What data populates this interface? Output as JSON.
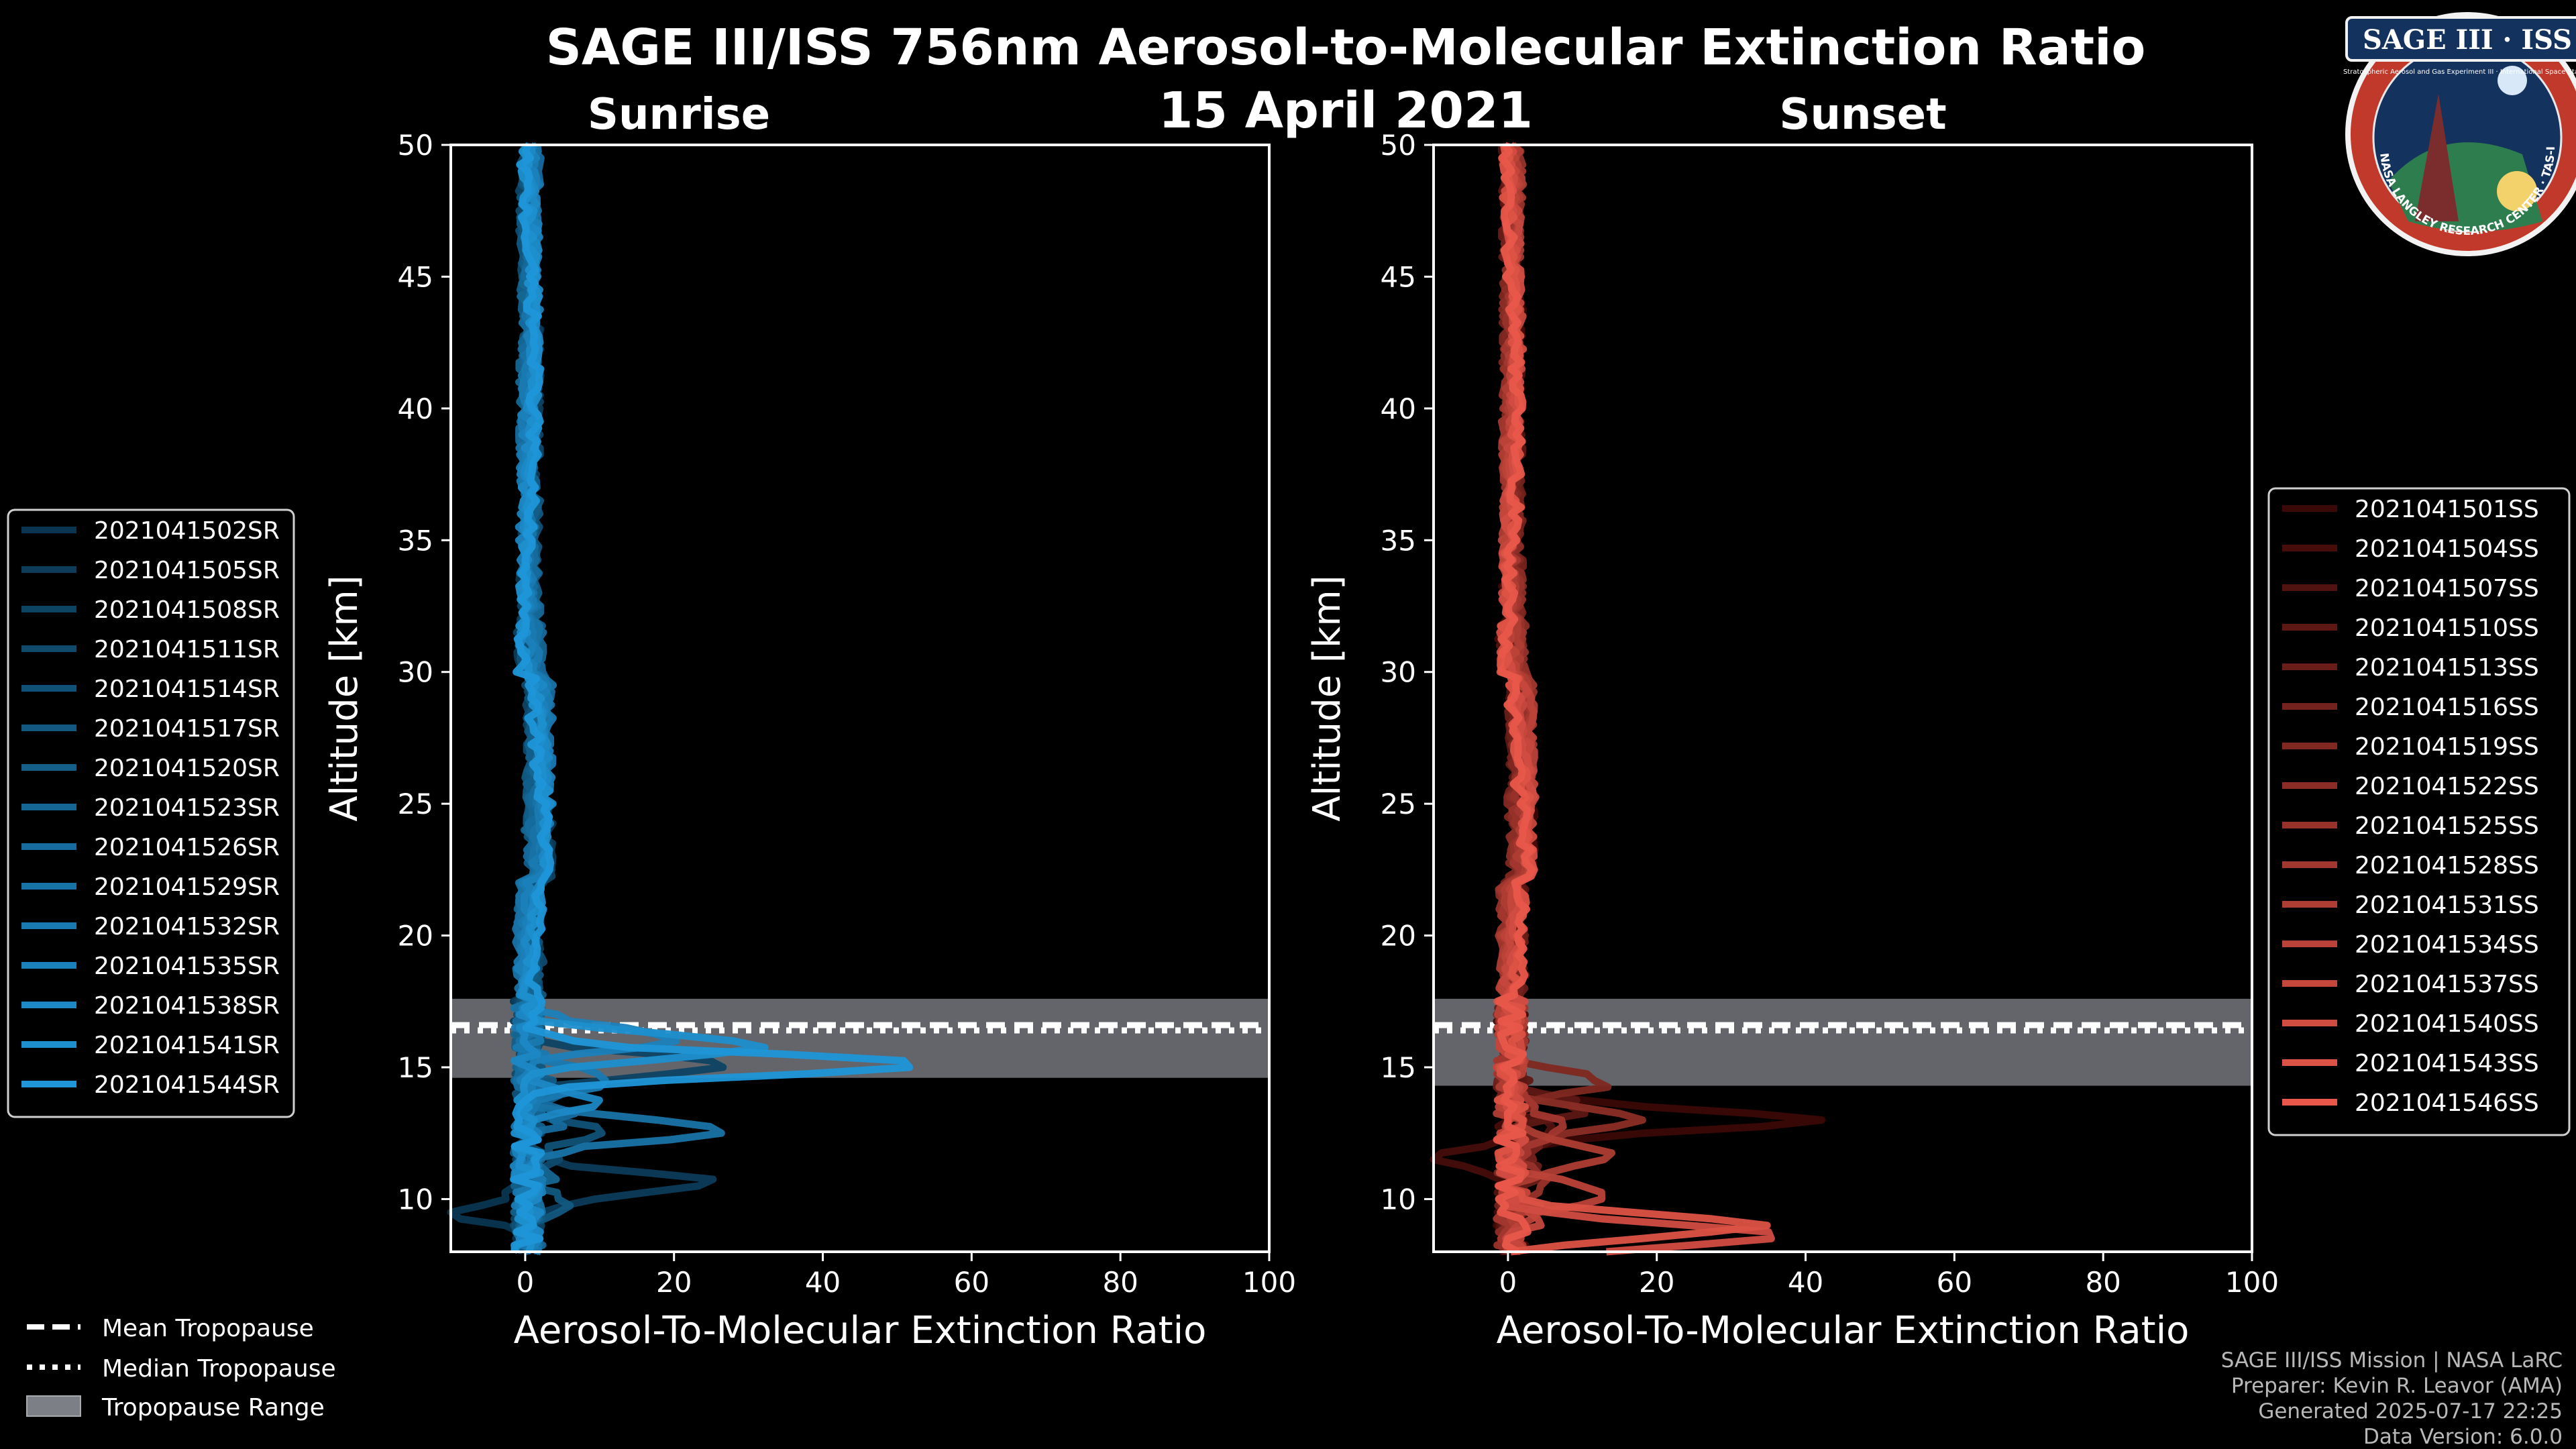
{
  "title": "SAGE III/ISS 756nm Aerosol-to-Molecular Extinction Ratio",
  "date": "15 April 2021",
  "logo": {
    "text": "SAGE III · ISS",
    "subtext": "Stratospheric Aerosol and Gas Experiment III · International Space Station",
    "ring_text": "BALL · NASA LANGLEY RESEARCH CENTER · TAS-I · ESA"
  },
  "credits": {
    "line1": "SAGE III/ISS Mission | NASA LaRC",
    "line2": "Preparer: Kevin R. Leavor (AMA)",
    "line3": "Generated 2025-07-17 22:25",
    "line4": "Data Version: 6.0.0"
  },
  "tropopause_legend": {
    "mean": "Mean Tropopause",
    "median": "Median Tropopause",
    "range": "Tropopause Range"
  },
  "chart_data": [
    {
      "type": "line",
      "title": "Sunrise",
      "xlabel": "Aerosol-To-Molecular Extinction Ratio",
      "ylabel": "Altitude [km]",
      "xlim": [
        -10,
        100
      ],
      "ylim": [
        8,
        50
      ],
      "xticks": [
        0,
        20,
        40,
        60,
        80,
        100
      ],
      "yticks": [
        10,
        15,
        20,
        25,
        30,
        35,
        40,
        45,
        50
      ],
      "tropopause": {
        "mean": 16.6,
        "median": 16.4,
        "range": [
          14.6,
          17.6
        ]
      },
      "colors": {
        "first": "#0a3550",
        "last": "#1f96d8"
      },
      "legend_position": "left",
      "series": [
        {
          "name": "2021041502SR",
          "peak_alt": 9.5,
          "peak_val": -9
        },
        {
          "name": "2021041505SR",
          "peak_alt": 10.6,
          "peak_val": 25
        },
        {
          "name": "2021041508SR",
          "peak_alt": 15.1,
          "peak_val": 26
        },
        {
          "name": "2021041511SR",
          "peak_alt": 11.5,
          "peak_val": 4
        },
        {
          "name": "2021041514SR",
          "peak_alt": 12.5,
          "peak_val": 9
        },
        {
          "name": "2021041517SR",
          "peak_alt": 9.8,
          "peak_val": 6
        },
        {
          "name": "2021041520SR",
          "peak_alt": 14.0,
          "peak_val": 3
        },
        {
          "name": "2021041523SR",
          "peak_alt": 10.8,
          "peak_val": 2
        },
        {
          "name": "2021041526SR",
          "peak_alt": 13.2,
          "peak_val": 5
        },
        {
          "name": "2021041529SR",
          "peak_alt": 12.6,
          "peak_val": 26
        },
        {
          "name": "2021041532SR",
          "peak_alt": 14.6,
          "peak_val": 12
        },
        {
          "name": "2021041535SR",
          "peak_alt": 16.1,
          "peak_val": 20
        },
        {
          "name": "2021041538SR",
          "peak_alt": 13.7,
          "peak_val": 8
        },
        {
          "name": "2021041541SR",
          "peak_alt": 15.8,
          "peak_val": 33
        },
        {
          "name": "2021041544SR",
          "peak_alt": 15.1,
          "peak_val": 52
        }
      ]
    },
    {
      "type": "line",
      "title": "Sunset",
      "xlabel": "Aerosol-To-Molecular Extinction Ratio",
      "ylabel": "Altitude [km]",
      "xlim": [
        -10,
        100
      ],
      "ylim": [
        8,
        50
      ],
      "xticks": [
        0,
        20,
        40,
        60,
        80,
        100
      ],
      "yticks": [
        10,
        15,
        20,
        25,
        30,
        35,
        40,
        45,
        50
      ],
      "tropopause": {
        "mean": 16.6,
        "median": 16.4,
        "range": [
          14.3,
          17.6
        ]
      },
      "colors": {
        "first": "#3a0806",
        "last": "#e8574a"
      },
      "legend_position": "right",
      "series": [
        {
          "name": "2021041501SS",
          "peak_alt": 13.0,
          "peak_val": 40
        },
        {
          "name": "2021041504SS",
          "peak_alt": 11.5,
          "peak_val": -9
        },
        {
          "name": "2021041507SS",
          "peak_alt": 12.5,
          "peak_val": 6
        },
        {
          "name": "2021041510SS",
          "peak_alt": 13.5,
          "peak_val": 10
        },
        {
          "name": "2021041513SS",
          "peak_alt": 11.0,
          "peak_val": 4
        },
        {
          "name": "2021041516SS",
          "peak_alt": 12.0,
          "peak_val": 3
        },
        {
          "name": "2021041519SS",
          "peak_alt": 14.4,
          "peak_val": 13
        },
        {
          "name": "2021041522SS",
          "peak_alt": 13.0,
          "peak_val": 18
        },
        {
          "name": "2021041525SS",
          "peak_alt": 10.5,
          "peak_val": 5
        },
        {
          "name": "2021041528SS",
          "peak_alt": 12.8,
          "peak_val": 8
        },
        {
          "name": "2021041531SS",
          "peak_alt": 11.6,
          "peak_val": 14
        },
        {
          "name": "2021041534SS",
          "peak_alt": 10.2,
          "peak_val": 14
        },
        {
          "name": "2021041537SS",
          "peak_alt": 9.3,
          "peak_val": 4
        },
        {
          "name": "2021041540SS",
          "peak_alt": 8.6,
          "peak_val": 36
        },
        {
          "name": "2021041543SS",
          "peak_alt": 9.0,
          "peak_val": 33
        },
        {
          "name": "2021041546SS",
          "peak_alt": 8.3,
          "peak_val": 1
        }
      ]
    }
  ]
}
